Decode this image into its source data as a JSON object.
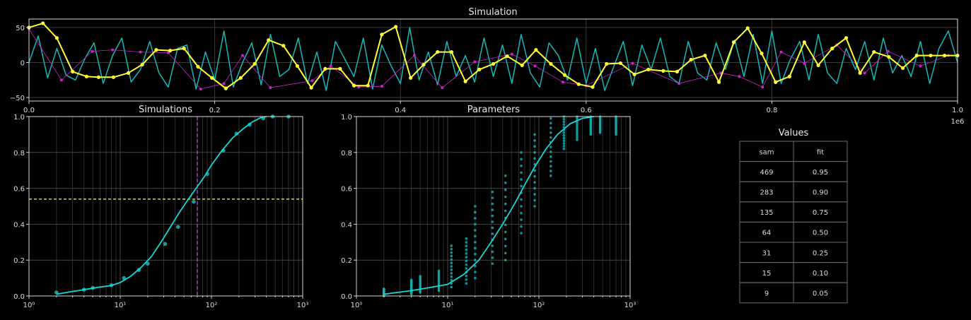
{
  "chart_data": [
    {
      "type": "line",
      "title": "Simulation",
      "xlim": [
        0,
        1000000
      ],
      "ylim": [
        -55,
        62
      ],
      "x_scale_label": "1e6",
      "x_ticks": [
        0,
        200000,
        400000,
        600000,
        800000,
        1000000
      ],
      "x_tick_labels": [
        "0.0",
        "0.2",
        "0.4",
        "0.6",
        "0.8",
        "1.0"
      ],
      "y_ticks": [
        -50,
        0,
        50
      ],
      "y_tick_labels": [
        "−50",
        "0",
        "50"
      ],
      "grid": true,
      "series": [
        {
          "color": "#ffff33",
          "style": "line-with-points",
          "x": [
            0,
            15000,
            30000,
            47000,
            62000,
            75000,
            91000,
            107000,
            122000,
            137000,
            152000,
            167000,
            182000,
            197000,
            212000,
            228000,
            243000,
            258000,
            274000,
            289000,
            304000,
            319000,
            335000,
            350000,
            365000,
            380000,
            395000,
            411000,
            425000,
            440000,
            455000,
            470000,
            485000,
            500000,
            515000,
            531000,
            546000,
            562000,
            577000,
            592000,
            607000,
            622000,
            637000,
            652000,
            667000,
            683000,
            698000,
            713000,
            728000,
            743000,
            759000,
            774000,
            789000,
            804000,
            819000,
            835000,
            850000,
            865000,
            880000,
            895000,
            910000,
            926000,
            941000,
            956000,
            971000,
            986000,
            1000000
          ],
          "y": [
            50,
            56,
            35,
            -13,
            -20,
            -21,
            -21,
            -15,
            -3,
            18,
            17,
            20,
            -6,
            -22,
            -37,
            -22,
            -2,
            32,
            24,
            -5,
            -36,
            -9,
            -9,
            -33,
            -33,
            40,
            51,
            -22,
            -3,
            15,
            15,
            -27,
            -10,
            -2,
            9,
            -4,
            18,
            -2,
            -18,
            -31,
            -35,
            -2,
            -1,
            -17,
            -10,
            -12,
            -13,
            4,
            10,
            -28,
            29,
            49,
            13,
            -28,
            -20,
            29,
            -4,
            20,
            35,
            -15,
            15,
            8,
            -8,
            10,
            10,
            10,
            10
          ],
          "x_note": "",
          "y_note": ""
        },
        {
          "color": "#cc22cc",
          "style": "thin-line-with-points",
          "x": [
            0,
            35000,
            68000,
            90000,
            120000,
            150000,
            185000,
            210000,
            230000,
            260000,
            305000,
            325000,
            355000,
            380000,
            415000,
            445000,
            480000,
            520000,
            545000,
            575000,
            600000,
            650000,
            700000,
            745000,
            765000,
            790000,
            810000,
            835000,
            870000,
            900000,
            925000,
            960000,
            990000
          ],
          "y": [
            48,
            -25,
            16,
            18,
            15,
            14,
            -38,
            -30,
            10,
            -36,
            -26,
            -5,
            -35,
            -34,
            10,
            -36,
            1,
            12,
            -5,
            -28,
            -33,
            -1,
            -30,
            -15,
            -20,
            -35,
            15,
            -1,
            25,
            -15,
            16,
            -5,
            10
          ]
        },
        {
          "color": "#14b8b8",
          "style": "smooth-line",
          "x": [
            0,
            10000,
            20000,
            30000,
            40000,
            50000,
            60000,
            70000,
            80000,
            90000,
            100000,
            110000,
            120000,
            130000,
            140000,
            150000,
            160000,
            170000,
            180000,
            190000,
            200000,
            210000,
            220000,
            230000,
            240000,
            250000,
            260000,
            270000,
            280000,
            290000,
            300000,
            310000,
            320000,
            330000,
            340000,
            350000,
            360000,
            370000,
            380000,
            390000,
            400000,
            410000,
            420000,
            430000,
            440000,
            450000,
            460000,
            470000,
            480000,
            490000,
            500000,
            510000,
            520000,
            530000,
            540000,
            550000,
            560000,
            570000,
            580000,
            590000,
            600000,
            610000,
            620000,
            630000,
            640000,
            650000,
            660000,
            670000,
            680000,
            690000,
            700000,
            710000,
            720000,
            730000,
            740000,
            750000,
            760000,
            770000,
            780000,
            790000,
            800000,
            810000,
            820000,
            830000,
            840000,
            850000,
            860000,
            870000,
            880000,
            890000,
            900000,
            910000,
            920000,
            930000,
            940000,
            950000,
            960000,
            970000,
            980000,
            990000,
            1000000
          ],
          "y": [
            0,
            38,
            -22,
            20,
            -18,
            -25,
            5,
            28,
            -30,
            10,
            35,
            -28,
            -10,
            30,
            -15,
            -35,
            20,
            25,
            -38,
            15,
            -25,
            45,
            -35,
            0,
            28,
            -32,
            40,
            -20,
            -10,
            35,
            -30,
            15,
            -40,
            30,
            5,
            -20,
            35,
            -38,
            25,
            -5,
            -30,
            50,
            -25,
            15,
            -32,
            30,
            -20,
            10,
            -28,
            35,
            -20,
            25,
            -30,
            40,
            -15,
            -35,
            28,
            10,
            -25,
            35,
            -30,
            20,
            -40,
            -5,
            30,
            -33,
            25,
            -10,
            35,
            -20,
            -30,
            30,
            -15,
            -25,
            28,
            -10,
            32,
            -20,
            40,
            -30,
            45,
            -30,
            5,
            30,
            -25,
            40,
            -15,
            -30,
            20,
            -10,
            30,
            -25,
            35,
            -15,
            10,
            -20,
            30,
            -30,
            20,
            45,
            0
          ],
          "x_note": "",
          "y_note": ""
        }
      ]
    },
    {
      "type": "scatter",
      "title": "Simulations",
      "x_scale": "log",
      "xlim": [
        1,
        1000
      ],
      "ylim": [
        0,
        1
      ],
      "x_tick_labels": [
        "10⁰",
        "10¹",
        "10²",
        "10³"
      ],
      "y_ticks": [
        0,
        0.2,
        0.4,
        0.6,
        0.8,
        1.0
      ],
      "y_tick_labels": [
        "0.0",
        "0.2",
        "0.4",
        "0.6",
        "0.8",
        "1.0"
      ],
      "grid": true,
      "points": {
        "color": "#14b8b8",
        "x": [
          2,
          4,
          5,
          8,
          11,
          16,
          20,
          31,
          43,
          64,
          90,
          135,
          188,
          262,
          370,
          469,
          700
        ],
        "y": [
          0.02,
          0.035,
          0.045,
          0.06,
          0.1,
          0.145,
          0.18,
          0.29,
          0.385,
          0.525,
          0.68,
          0.81,
          0.905,
          0.955,
          0.99,
          1.0,
          1.0
        ]
      },
      "curve": {
        "color": "#14d8d8",
        "x": [
          2,
          3,
          4,
          6,
          8,
          10,
          13,
          17,
          22,
          28,
          35,
          45,
          56,
          70,
          85,
          100,
          130,
          170,
          220,
          280,
          350,
          400
        ],
        "y": [
          0.01,
          0.025,
          0.035,
          0.05,
          0.058,
          0.075,
          0.11,
          0.16,
          0.22,
          0.3,
          0.38,
          0.47,
          0.54,
          0.61,
          0.67,
          0.73,
          0.81,
          0.88,
          0.93,
          0.97,
          0.995,
          1.0
        ]
      },
      "vline": {
        "x": 70,
        "color": "#ff33ff"
      },
      "hline": {
        "y": 0.54,
        "color": "#ffff33"
      }
    },
    {
      "type": "scatter",
      "title": "Parameters",
      "x_scale": "log",
      "xlim": [
        1,
        1000
      ],
      "ylim": [
        0,
        1
      ],
      "x_tick_labels": [
        "10⁰",
        "10¹",
        "10²",
        "10³"
      ],
      "y_ticks": [
        0,
        0.2,
        0.4,
        0.6,
        0.8,
        1.0
      ],
      "y_tick_labels": [
        "0.0",
        "0.2",
        "0.4",
        "0.6",
        "0.8",
        "1.0"
      ],
      "grid": true,
      "strips": {
        "color": "#14b8b8",
        "x": [
          2,
          4,
          5,
          8,
          11,
          16,
          20,
          31,
          43,
          64,
          90,
          135,
          188,
          262,
          370,
          469,
          700
        ],
        "ymin": [
          0.0,
          0.01,
          0.02,
          0.03,
          0.05,
          0.07,
          0.1,
          0.18,
          0.2,
          0.35,
          0.5,
          0.67,
          0.82,
          0.87,
          0.9,
          0.91,
          0.9
        ],
        "ymax": [
          0.04,
          0.09,
          0.11,
          0.14,
          0.28,
          0.32,
          0.5,
          0.58,
          0.67,
          0.8,
          0.9,
          0.99,
          1.0,
          1.0,
          1.0,
          1.0,
          1.0
        ]
      },
      "curve": {
        "color": "#14d8d8",
        "x": [
          2,
          4,
          6,
          10,
          15,
          22,
          30,
          40,
          55,
          70,
          90,
          120,
          160,
          220,
          300,
          400
        ],
        "y": [
          0.01,
          0.03,
          0.045,
          0.065,
          0.12,
          0.2,
          0.3,
          0.4,
          0.52,
          0.62,
          0.72,
          0.82,
          0.9,
          0.96,
          0.99,
          1.0
        ]
      }
    }
  ],
  "table": {
    "title": "Values",
    "headers": [
      "sam",
      "fit"
    ],
    "rows": [
      [
        "469",
        "0.95"
      ],
      [
        "283",
        "0.90"
      ],
      [
        "135",
        "0.75"
      ],
      [
        "64",
        "0.50"
      ],
      [
        "31",
        "0.25"
      ],
      [
        "15",
        "0.10"
      ],
      [
        "9",
        "0.05"
      ]
    ]
  }
}
